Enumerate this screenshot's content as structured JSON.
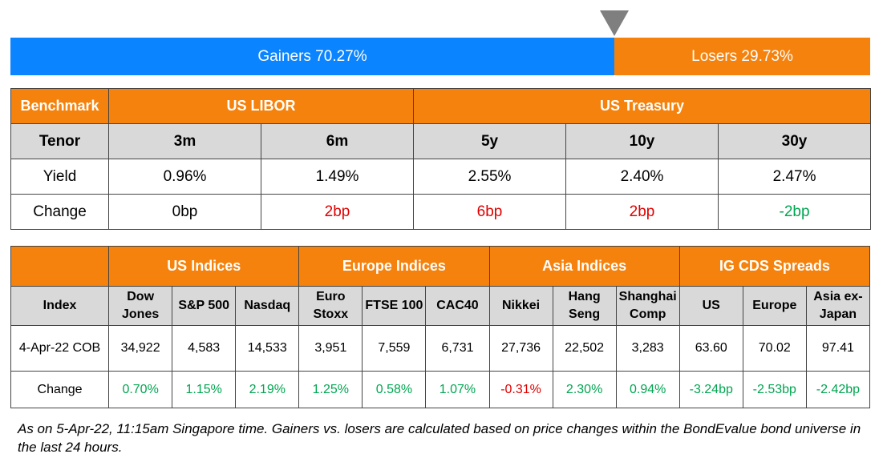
{
  "breadth": {
    "gainers_label": "Gainers 70.27%",
    "losers_label": "Losers 29.73%",
    "gainers_pct": 70.27,
    "losers_pct": 29.73,
    "gainers_color": "#0b84ff",
    "losers_color": "#f5820c"
  },
  "rates": {
    "header": {
      "benchmark": "Benchmark",
      "libor": "US LIBOR",
      "treasury": "US Treasury"
    },
    "tenor_label": "Tenor",
    "tenors": [
      "3m",
      "6m",
      "5y",
      "10y",
      "30y"
    ],
    "yield_label": "Yield",
    "yields": [
      "0.96%",
      "1.49%",
      "2.55%",
      "2.40%",
      "2.47%"
    ],
    "change_label": "Change",
    "changes": [
      "0bp",
      "2bp",
      "6bp",
      "2bp",
      "-2bp"
    ],
    "change_dirs": [
      "neutral",
      "down",
      "down",
      "down",
      "up"
    ]
  },
  "indices": {
    "groups": [
      "US Indices",
      "Europe Indices",
      "Asia Indices",
      "IG CDS Spreads"
    ],
    "index_label": "Index",
    "columns": [
      [
        "Dow",
        "Jones"
      ],
      [
        "S&P 500"
      ],
      [
        "Nasdaq"
      ],
      [
        "Euro",
        "Stoxx"
      ],
      [
        "FTSE 100"
      ],
      [
        "CAC40"
      ],
      [
        "Nikkei"
      ],
      [
        "Hang",
        "Seng"
      ],
      [
        "Shanghai",
        "Comp"
      ],
      [
        "US"
      ],
      [
        "Europe"
      ],
      [
        "Asia ex-",
        "Japan"
      ]
    ],
    "date_label": "4-Apr-22 COB",
    "values": [
      "34,922",
      "4,583",
      "14,533",
      "3,951",
      "7,559",
      "6,731",
      "27,736",
      "22,502",
      "3,283",
      "63.60",
      "70.02",
      "97.41"
    ],
    "change_label": "Change",
    "changes": [
      "0.70%",
      "1.15%",
      "2.19%",
      "1.25%",
      "0.58%",
      "1.07%",
      "-0.31%",
      "2.30%",
      "0.94%",
      "-3.24bp",
      "-2.53bp",
      "-2.42bp"
    ],
    "change_dirs": [
      "up",
      "up",
      "up",
      "up",
      "up",
      "up",
      "down",
      "up",
      "up",
      "up",
      "up",
      "up"
    ]
  },
  "footnote": "As on 5-Apr-22, 11:15am Singapore time. Gainers vs. losers are calculated based on price changes within the BondEvalue bond universe in the last 24 hours."
}
